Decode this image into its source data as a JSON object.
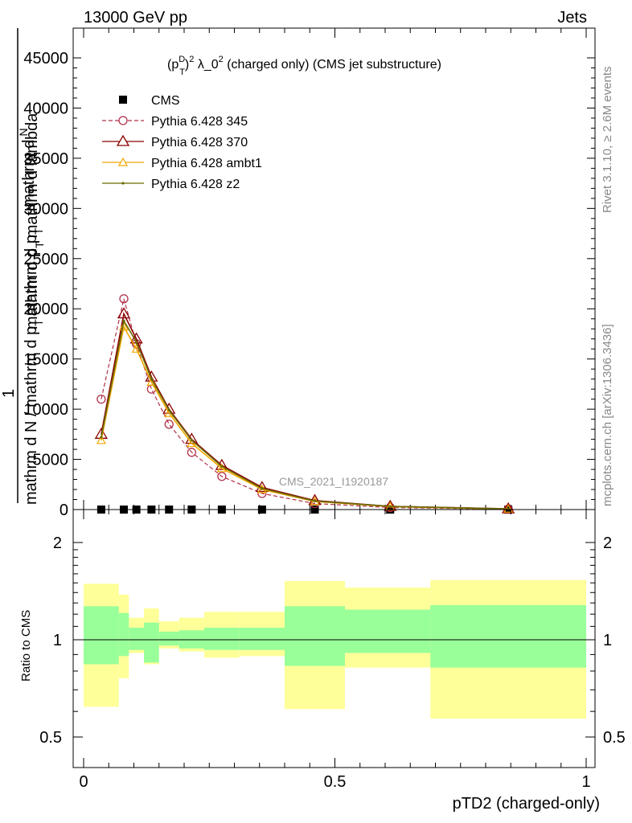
{
  "header": {
    "left": "13000 GeV pp",
    "right": "Jets"
  },
  "side_labels": {
    "rivet": "Rivet 3.1.10, ≥ 2.6M events",
    "mcplots": "mcplots.cern.ch [arXiv:1306.3436]"
  },
  "watermark": "CMS_2021_I1920187",
  "chart_data": [
    {
      "type": "line",
      "title_parts": {
        "p": "(p",
        "sup_d": "D",
        "sub_t": "T",
        "close": ")",
        "sup_2": "2",
        "rest": " λ_0",
        "sup_2b": "2",
        "tail": " (charged only) (CMS jet substructure)"
      },
      "ylabel_parts": {
        "one": "1",
        "frac_num": "mathrm d",
        "frac_num2": "N",
        "frac_den": "mathrm d p",
        "frac_den_sub": "T",
        "frac_den2": "mathrm d lambda",
        "denom_line": "mathrm d N / mathrm d p",
        "denom_sub": "T",
        "denom_tail": "mathrm d p",
        "denom_tail_sub": "T"
      },
      "xlim": [
        0,
        1
      ],
      "ylim": [
        0,
        45000
      ],
      "y_ticks": [
        0,
        5000,
        10000,
        15000,
        20000,
        25000,
        30000,
        35000,
        40000,
        45000
      ],
      "y_tick_labels": [
        "0",
        "5000",
        "10000",
        "15000",
        "20000",
        "25000",
        "30000",
        "35000",
        "40000",
        "45000"
      ],
      "legend": [
        "CMS",
        "Pythia 6.428 345",
        "Pythia 6.428 370",
        "Pythia 6.428 ambt1",
        "Pythia 6.428 z2"
      ],
      "series": [
        {
          "name": "CMS",
          "color": "#000000",
          "x": [
            0.035,
            0.08,
            0.105,
            0.135,
            0.17,
            0.215,
            0.275,
            0.355,
            0.46,
            0.61,
            0.845
          ],
          "values": [
            0,
            0,
            0,
            0,
            0,
            0,
            0,
            0,
            0,
            0,
            0
          ]
        },
        {
          "name": "Pythia 6.428 345",
          "color": "#b0304a",
          "x": [
            0.035,
            0.08,
            0.105,
            0.135,
            0.17,
            0.215,
            0.275,
            0.355,
            0.46,
            0.61,
            0.845
          ],
          "values": [
            11000,
            21000,
            16500,
            12000,
            8500,
            5700,
            3300,
            1600,
            600,
            200,
            40
          ]
        },
        {
          "name": "Pythia 6.428 370",
          "color": "#8b0000",
          "x": [
            0.035,
            0.08,
            0.105,
            0.135,
            0.17,
            0.215,
            0.275,
            0.355,
            0.46,
            0.61,
            0.845
          ],
          "values": [
            7500,
            19500,
            17000,
            13200,
            10000,
            7000,
            4400,
            2200,
            900,
            320,
            70
          ]
        },
        {
          "name": "Pythia 6.428 ambt1",
          "color": "#f0a800",
          "x": [
            0.035,
            0.08,
            0.105,
            0.135,
            0.17,
            0.215,
            0.275,
            0.355,
            0.46,
            0.61,
            0.845
          ],
          "values": [
            6900,
            18200,
            16000,
            12700,
            9600,
            6600,
            4100,
            2000,
            800,
            300,
            60
          ]
        },
        {
          "name": "Pythia 6.428 z2",
          "color": "#6b6b00",
          "x": [
            0.035,
            0.08,
            0.105,
            0.135,
            0.17,
            0.215,
            0.275,
            0.355,
            0.46,
            0.61,
            0.845
          ],
          "values": [
            7200,
            18800,
            16700,
            13000,
            9900,
            6900,
            4300,
            2100,
            850,
            310,
            65
          ]
        }
      ]
    },
    {
      "type": "area",
      "ylabel": "Ratio to CMS",
      "xlabel": "pTD2 (charged-only)",
      "xlim": [
        0,
        1
      ],
      "ylim": [
        0.35,
        2.3
      ],
      "y_ticks": [
        0.5,
        1,
        2
      ],
      "y_tick_labels": [
        "0.5",
        "1",
        "2"
      ],
      "x_ticks": [
        0,
        0.5,
        1
      ],
      "x_tick_labels": [
        "0",
        "0.5",
        "1"
      ],
      "bins": [
        0,
        0.07,
        0.09,
        0.12,
        0.15,
        0.19,
        0.24,
        0.31,
        0.4,
        0.52,
        0.69,
        1.0
      ],
      "green_lo": [
        0.84,
        0.89,
        0.93,
        0.85,
        0.96,
        0.94,
        0.93,
        0.93,
        0.83,
        0.91,
        0.82
      ],
      "green_hi": [
        1.27,
        1.21,
        1.09,
        1.13,
        1.06,
        1.07,
        1.09,
        1.09,
        1.27,
        1.24,
        1.28
      ],
      "yellow_lo": [
        0.62,
        0.76,
        0.91,
        0.84,
        0.94,
        0.92,
        0.88,
        0.89,
        0.61,
        0.82,
        0.57
      ],
      "yellow_hi": [
        1.49,
        1.38,
        1.17,
        1.25,
        1.14,
        1.17,
        1.22,
        1.22,
        1.52,
        1.45,
        1.53
      ],
      "band_colors": {
        "green": "#99ff99",
        "yellow": "#ffff99"
      }
    }
  ]
}
